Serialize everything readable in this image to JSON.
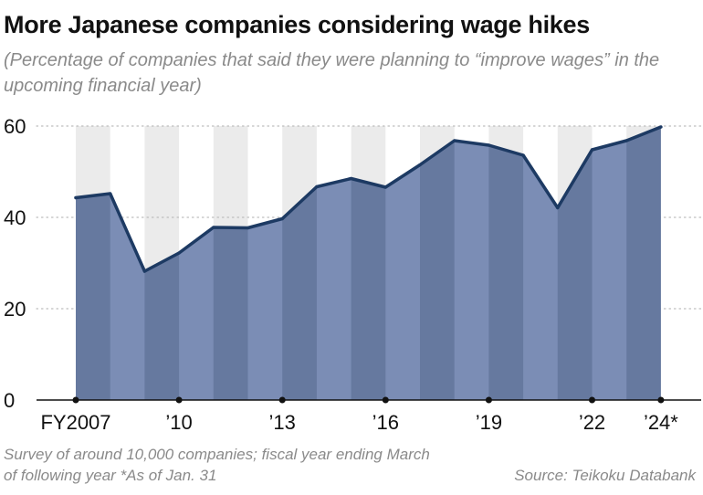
{
  "chart_data": {
    "type": "area",
    "title": "More Japanese companies considering wage hikes",
    "subtitle": "(Percentage of companies that said they were planning to “improve wages” in the upcoming financial year)",
    "x": [
      2007,
      2008,
      2009,
      2010,
      2011,
      2012,
      2013,
      2014,
      2015,
      2016,
      2017,
      2018,
      2019,
      2020,
      2021,
      2022,
      2023,
      2024
    ],
    "values": [
      44.3,
      45.2,
      28.2,
      32.2,
      37.8,
      37.7,
      39.7,
      46.7,
      48.5,
      46.6,
      51.5,
      56.8,
      55.8,
      53.6,
      42.1,
      54.8,
      56.8,
      59.8
    ],
    "x_tick_positions": [
      2007,
      2010,
      2013,
      2016,
      2019,
      2022,
      2024
    ],
    "x_tick_labels": [
      "FY2007",
      "’10",
      "’13",
      "’16",
      "’19",
      "’22",
      "’24*"
    ],
    "y_ticks": [
      0,
      20,
      40,
      60
    ],
    "y_tick_labels": [
      "0",
      "20",
      "40",
      "60"
    ],
    "ylim": [
      0,
      60
    ],
    "xlabel": "",
    "ylabel": "",
    "grid": true,
    "colors": {
      "line": "#1d3a63",
      "fill_light": "#7b8db5",
      "fill_dark": "#66799f",
      "band": "#ebebeb",
      "grid": "#bdbdbd"
    }
  },
  "footnote": "Survey of around 10,000 companies; fiscal year ending March of following year  *As of Jan. 31",
  "source": "Source: Teikoku Databank"
}
